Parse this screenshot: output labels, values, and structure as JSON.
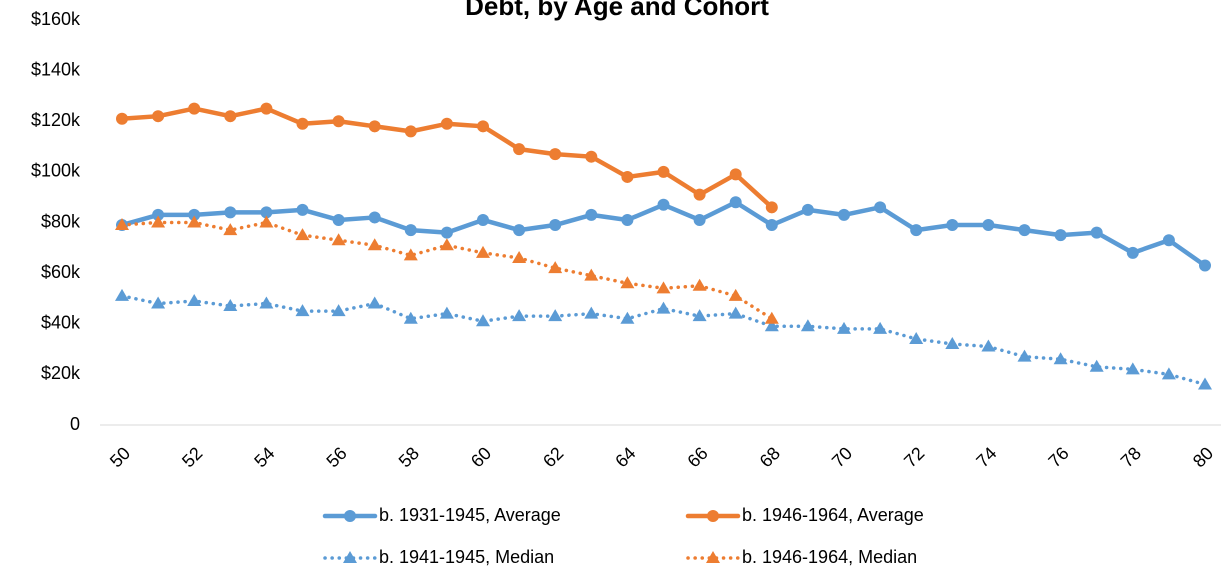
{
  "chart_data": {
    "type": "line",
    "title": "Debt, by Age and Cohort",
    "x": [
      50,
      51,
      52,
      53,
      54,
      55,
      56,
      57,
      58,
      59,
      60,
      61,
      62,
      63,
      64,
      65,
      66,
      67,
      68,
      69,
      70,
      71,
      72,
      73,
      74,
      75,
      76,
      77,
      78,
      79,
      80
    ],
    "xlim": [
      50,
      80
    ],
    "xticks": [
      50,
      52,
      54,
      56,
      58,
      60,
      62,
      64,
      66,
      68,
      70,
      72,
      74,
      76,
      78,
      80
    ],
    "ylim": [
      0,
      160
    ],
    "yticks": [
      0,
      {
        "value": 20,
        "label": "$20k"
      },
      {
        "value": 40,
        "label": "$40k"
      },
      {
        "value": 60,
        "label": "$60k"
      },
      {
        "value": 80,
        "label": "$80k"
      },
      {
        "value": 100,
        "label": "$100k"
      },
      {
        "value": 120,
        "label": "$120k"
      },
      {
        "value": 140,
        "label": "$140k"
      },
      {
        "value": 160,
        "label": "$160k"
      }
    ],
    "grid": false,
    "series": [
      {
        "name": "b. 1931-1945, Average",
        "color": "#5b9bd5",
        "style": "solid",
        "marker": "circle",
        "values": [
          79,
          83,
          83,
          84,
          84,
          85,
          81,
          82,
          77,
          76,
          81,
          77,
          79,
          83,
          81,
          87,
          81,
          88,
          79,
          85,
          83,
          86,
          77,
          79,
          79,
          77,
          75,
          76,
          68,
          73,
          63
        ]
      },
      {
        "name": "b. 1946-1964, Average",
        "color": "#ed7d31",
        "style": "solid",
        "marker": "circle",
        "values": [
          121,
          122,
          125,
          122,
          125,
          119,
          120,
          118,
          116,
          119,
          118,
          109,
          107,
          106,
          98,
          100,
          91,
          99,
          86,
          null,
          null,
          null,
          null,
          null,
          null,
          null,
          null,
          null,
          null,
          null,
          null
        ]
      },
      {
        "name": "b. 1941-1945, Median",
        "color": "#5b9bd5",
        "style": "dotted",
        "marker": "triangle",
        "values": [
          51,
          48,
          49,
          47,
          48,
          45,
          45,
          48,
          42,
          44,
          41,
          43,
          43,
          44,
          42,
          46,
          43,
          44,
          39,
          39,
          38,
          38,
          34,
          32,
          31,
          27,
          26,
          23,
          22,
          20,
          16
        ]
      },
      {
        "name": "b. 1946-1964, Median",
        "color": "#ed7d31",
        "style": "dotted",
        "marker": "triangle",
        "values": [
          79,
          80,
          80,
          77,
          80,
          75,
          73,
          71,
          67,
          71,
          68,
          66,
          62,
          59,
          56,
          54,
          55,
          51,
          42,
          null,
          null,
          null,
          null,
          null,
          null,
          null,
          null,
          null,
          null,
          null,
          null
        ]
      }
    ]
  }
}
